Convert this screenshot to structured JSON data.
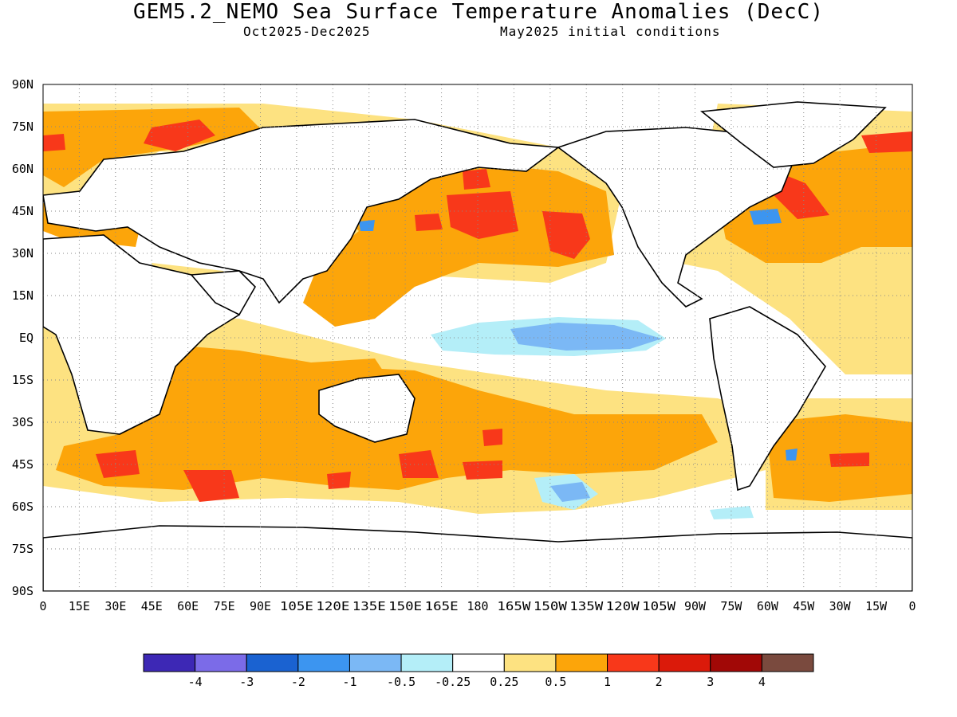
{
  "title": "GEM5.2_NEMO Sea Surface Temperature Anomalies (DecC)",
  "period": "Oct2025-Dec2025",
  "init": "May2025 initial conditions",
  "lat_labels": [
    "90N",
    "75N",
    "60N",
    "45N",
    "30N",
    "15N",
    "EQ",
    "15S",
    "30S",
    "45S",
    "60S",
    "75S",
    "90S"
  ],
  "lon_labels": [
    "0",
    "15E",
    "30E",
    "45E",
    "60E",
    "75E",
    "90E",
    "105E",
    "120E",
    "135E",
    "150E",
    "165E",
    "180",
    "165W",
    "150W",
    "135W",
    "120W",
    "105W",
    "90W",
    "75W",
    "60W",
    "45W",
    "30W",
    "15W",
    "0"
  ],
  "legend": {
    "colors": [
      "#3d28b5",
      "#7b6be8",
      "#1a62d1",
      "#3c95f0",
      "#7bb8f5",
      "#b4eef8",
      "#ffffff",
      "#fde281",
      "#fca50a",
      "#f8381a",
      "#db1a0a",
      "#a10806",
      "#7a4a3e"
    ],
    "labels": [
      "-4",
      "-3",
      "-2",
      "-1",
      "-0.5",
      "-0.25",
      "0.25",
      "0.5",
      "1",
      "2",
      "3",
      "4"
    ]
  },
  "colors": {
    "land_outline": "#000000",
    "grid": "#999999",
    "ocean_default": "#ffffff",
    "weak_warm": "#fde281",
    "warm": "#fca50a",
    "strong_warm": "#f8381a",
    "weak_cool": "#b4eef8",
    "cool": "#7bb8f5",
    "strong_cool": "#3c95f0"
  }
}
